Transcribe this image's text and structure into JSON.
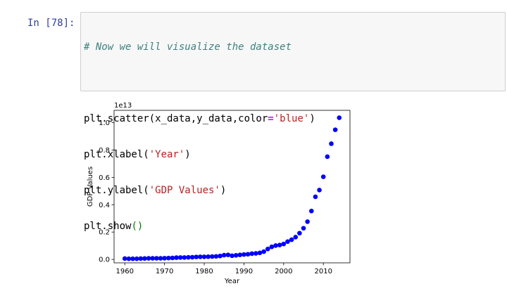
{
  "cell": {
    "prompt": "In [78]:",
    "code": {
      "comment": "# Now we will visualize the dataset",
      "line1_prefix": "plt.scatter(x_data,y_data,color",
      "line1_op": "=",
      "line1_str": "'blue'",
      "line1_suffix": ")",
      "line2_prefix": "plt.xlabel(",
      "line2_str": "'Year'",
      "line2_suffix": ")",
      "line3_prefix": "plt.ylabel(",
      "line3_str": "'GDP Values'",
      "line3_suffix": ")",
      "line4_prefix": "plt.show",
      "line4_parens": "()"
    }
  },
  "chart_data": {
    "type": "scatter",
    "color": "#0000ff",
    "xlabel": "Year",
    "ylabel": "GDP Values",
    "offset_text": "1e13",
    "xlim": [
      1957.3,
      2016.7
    ],
    "ylim": [
      -0.025,
      1.09
    ],
    "xticks": [
      1960,
      1970,
      1980,
      1990,
      2000,
      2010
    ],
    "yticks": [
      0.0,
      0.2,
      0.4,
      0.6,
      0.8,
      1.0
    ],
    "ytick_labels": [
      "0.0",
      "0.2",
      "0.4",
      "0.6",
      "0.8",
      "1.0"
    ],
    "x": [
      1960,
      1961,
      1962,
      1963,
      1964,
      1965,
      1966,
      1967,
      1968,
      1969,
      1970,
      1971,
      1972,
      1973,
      1974,
      1975,
      1976,
      1977,
      1978,
      1979,
      1980,
      1981,
      1982,
      1983,
      1984,
      1985,
      1986,
      1987,
      1988,
      1989,
      1990,
      1991,
      1992,
      1993,
      1994,
      1995,
      1996,
      1997,
      1998,
      1999,
      2000,
      2001,
      2002,
      2003,
      2004,
      2005,
      2006,
      2007,
      2008,
      2009,
      2010,
      2011,
      2012,
      2013,
      2014
    ],
    "y": [
      0.006,
      0.005,
      0.005,
      0.005,
      0.006,
      0.007,
      0.008,
      0.008,
      0.008,
      0.008,
      0.009,
      0.01,
      0.011,
      0.013,
      0.014,
      0.014,
      0.015,
      0.016,
      0.018,
      0.019,
      0.019,
      0.02,
      0.021,
      0.022,
      0.025,
      0.031,
      0.033,
      0.027,
      0.03,
      0.033,
      0.036,
      0.038,
      0.042,
      0.044,
      0.048,
      0.057,
      0.076,
      0.092,
      0.101,
      0.105,
      0.113,
      0.13,
      0.144,
      0.163,
      0.192,
      0.228,
      0.276,
      0.354,
      0.458,
      0.507,
      0.604,
      0.751,
      0.846,
      0.948,
      1.036
    ]
  }
}
